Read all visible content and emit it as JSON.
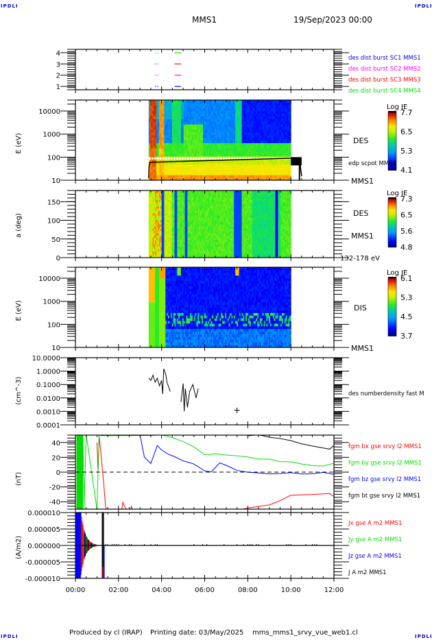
{
  "header": {
    "corner_tag": "IPDLI",
    "spacecraft": "MMS1",
    "datetime": "19/Sep/2023 00:00"
  },
  "footer": {
    "produced_by": "Produced by cl (IRAP)",
    "printing_date": "Printing date: 03/May/2025",
    "script_name": "mms_mms1_srvy_vue_web1.cl"
  },
  "chart_data": [
    {
      "id": "burst",
      "type": "scatter",
      "title": "",
      "ylabel": "",
      "ylim": [
        0.7,
        4.3
      ],
      "yticks": [
        1,
        2,
        3,
        4
      ],
      "ytick_labels": [
        "1",
        "2",
        "3",
        "4"
      ],
      "xlim": [
        0,
        12
      ],
      "series": [
        {
          "name": "des dist burst SC1 MMS1",
          "color": "#0000ff",
          "level": 1,
          "intervals": [
            [
              3.7,
              3.85
            ],
            [
              4.6,
              4.9
            ]
          ]
        },
        {
          "name": "des dist burst SC2 MMS2",
          "color": "#ff00ff",
          "level": 2,
          "intervals": [
            [
              3.7,
              3.85
            ],
            [
              4.6,
              4.9
            ]
          ]
        },
        {
          "name": "des dist burst SC3 MMS3",
          "color": "#ff0000",
          "level": 3,
          "intervals": [
            [
              3.7,
              3.85
            ],
            [
              4.6,
              4.9
            ]
          ]
        },
        {
          "name": "des dist burst SC4 MMS4",
          "color": "#00dd00",
          "level": 4,
          "intervals": [
            [
              3.7,
              3.85
            ],
            [
              4.6,
              4.9
            ]
          ]
        }
      ]
    },
    {
      "id": "des_energy",
      "type": "heatmap",
      "ylabel": "E (eV)",
      "yscale": "log",
      "ylim": [
        10,
        30000
      ],
      "ytick_labels": [
        "10",
        "100",
        "1000",
        "10000"
      ],
      "yticks": [
        10,
        100,
        1000,
        10000
      ],
      "right_label": "DES",
      "right_sublabel": "MMS1",
      "overlay_label": "edp scpot MMS1",
      "colorbar": {
        "title": "Log JE",
        "ticks": [
          "7.7",
          "6.5",
          "5.3",
          "4.1"
        ],
        "range": [
          4.1,
          7.7
        ]
      },
      "data_interval": [
        3.4,
        10.0
      ],
      "hot_bands": [
        [
          3.45,
          3.75,
          7.5
        ],
        [
          3.85,
          4.1,
          7.2
        ],
        [
          4.5,
          4.9,
          6.1
        ],
        [
          7.4,
          7.7,
          6.0
        ]
      ],
      "scpot_series": {
        "x": [
          3.4,
          3.42,
          3.45,
          10.0,
          10.05,
          10.2,
          10.3,
          10.4,
          10.5
        ],
        "y": [
          12,
          40,
          60,
          90,
          95,
          85,
          90,
          80,
          15
        ]
      }
    },
    {
      "id": "des_pitch",
      "type": "heatmap",
      "ylabel": "a (deg)",
      "ylim": [
        0,
        180
      ],
      "yticks": [
        0,
        50,
        100,
        150
      ],
      "ytick_labels": [
        "0",
        "50",
        "100",
        "150"
      ],
      "right_label": "DES",
      "right_sublabel": "MMS1",
      "energy_range_label": "132-178 eV",
      "colorbar": {
        "title": "Log JE",
        "ticks": [
          "7.3",
          "6.5",
          "5.6",
          "4.8"
        ],
        "range": [
          4.8,
          7.3
        ]
      },
      "data_interval": [
        3.4,
        10.0
      ],
      "blue_bands": [
        [
          4.0,
          4.1
        ],
        [
          4.6,
          4.7
        ],
        [
          5.1,
          5.2
        ],
        [
          7.35,
          7.7
        ],
        [
          9.3,
          9.4
        ]
      ]
    },
    {
      "id": "dis_energy",
      "type": "heatmap",
      "ylabel": "E (eV)",
      "yscale": "log",
      "ylim": [
        10,
        30000
      ],
      "yticks": [
        10,
        100,
        1000,
        10000
      ],
      "ytick_labels": [
        "10",
        "100",
        "1000",
        "10000"
      ],
      "right_label": "DIS",
      "right_sublabel": "MMS1",
      "colorbar": {
        "title": "Log JE",
        "ticks": [
          "6.1",
          "5.3",
          "4.5",
          "3.7"
        ],
        "range": [
          3.7,
          6.1
        ]
      },
      "data_interval": [
        3.4,
        10.0
      ]
    },
    {
      "id": "density",
      "type": "line",
      "ylabel": "(cm^-3)",
      "yscale": "log",
      "ylim": [
        0.0001,
        10
      ],
      "yticks": [
        0.0001,
        0.001,
        0.01,
        0.1,
        1,
        10
      ],
      "ytick_labels": [
        "0.0001",
        "0.0010",
        "0.0100",
        "0.1000",
        "1.0000",
        "10.0000"
      ],
      "legend": "des numberdensity fast M",
      "series": [
        {
          "name": "des numberdensity fast",
          "color": "#000000",
          "x": [
            3.4,
            3.5,
            3.6,
            3.7,
            3.8,
            3.9,
            4.0,
            4.05,
            4.1,
            4.2,
            4.25,
            4.4,
            4.9,
            5.0,
            5.05,
            5.1,
            5.2,
            5.3,
            5.45,
            5.6,
            5.7,
            6.0
          ],
          "y": [
            0.3,
            0.2,
            0.5,
            0.15,
            0.3,
            0.08,
            0.2,
            0.02,
            1.5,
            0.5,
            0.15,
            0.03,
            0.005,
            0.12,
            0.001,
            0.05,
            0.002,
            0.03,
            0.1,
            0.01,
            0.05,
            0.003
          ]
        },
        {
          "name": "isolated point",
          "color": "#000000",
          "marker": "+",
          "x": [
            7.5
          ],
          "y": [
            0.0012
          ]
        }
      ]
    },
    {
      "id": "bfield",
      "type": "line",
      "ylabel": "(nT)",
      "ylim": [
        -50,
        50
      ],
      "yticks": [
        -40,
        -20,
        0,
        20,
        40
      ],
      "ytick_labels": [
        "-40",
        "-20",
        "0",
        "20",
        "40"
      ],
      "zero_line": true,
      "series": [
        {
          "name": "fgm bx gse srvy l2 MMS1",
          "color": "#ff0000",
          "x": [
            1.0,
            1.05,
            1.1,
            1.2,
            1.3,
            1.4,
            1.6,
            2.1,
            2.2,
            2.5,
            2.6,
            2.7,
            3.0,
            5.0,
            6.5,
            7.0,
            7.5,
            8.0,
            8.5,
            9.0,
            9.5,
            10.0,
            11.0,
            11.8,
            12.0
          ],
          "y": [
            40,
            0,
            50,
            20,
            -10,
            -48,
            -60,
            -60,
            -40,
            -60,
            -45,
            -60,
            -60,
            -60,
            -52,
            -50,
            -52,
            -48,
            -46,
            -45,
            -38,
            -32,
            -30,
            -28,
            -33
          ]
        },
        {
          "name": "fgm by gse srvy l2 MMS1",
          "color": "#00dd00",
          "x": [
            0.2,
            0.25,
            0.3,
            0.35,
            0.4,
            0.5,
            1.0,
            1.1,
            1.2,
            3.5,
            4.0,
            4.5,
            5.0,
            5.5,
            6.0,
            6.5,
            7.0,
            7.5,
            8.0,
            8.5,
            9.0,
            9.5,
            10.0,
            10.5,
            11.0,
            11.5,
            12.0
          ],
          "y": [
            -50,
            50,
            -50,
            50,
            -50,
            50,
            -50,
            50,
            50,
            50,
            50,
            46,
            42,
            35,
            24,
            24,
            23,
            22,
            20,
            18,
            18,
            15,
            13,
            10,
            8,
            9,
            12
          ]
        },
        {
          "name": "fgm bz gse srvy l2 MMS1",
          "color": "#0000ff",
          "x": [
            2.6,
            3.0,
            3.2,
            3.5,
            3.8,
            4.0,
            4.3,
            4.6,
            5.0,
            5.5,
            6.0,
            6.3,
            6.7,
            7.0,
            7.5,
            8.0,
            8.5,
            9.0,
            9.5,
            10.0,
            10.5,
            11.0,
            11.5,
            12.0
          ],
          "y": [
            50,
            50,
            20,
            12,
            35,
            30,
            25,
            20,
            15,
            10,
            2,
            0,
            12,
            10,
            2,
            0,
            -2,
            -3,
            -2,
            0,
            -2,
            -2,
            -1,
            -3
          ]
        },
        {
          "name": "fgm bt gse srvy l2 MMS1",
          "color": "#000000",
          "x": [
            7.8,
            8.0,
            8.5,
            9.0,
            9.5,
            10.0,
            10.5,
            11.0,
            11.5,
            11.8,
            12.0
          ],
          "y": [
            60,
            50,
            50,
            48,
            45,
            42,
            38,
            35,
            33,
            32,
            36
          ]
        }
      ]
    },
    {
      "id": "current",
      "type": "line",
      "ylabel": "(A/m2)",
      "ylim": [
        -1e-05,
        1e-05
      ],
      "yticks": [
        -1e-05,
        -5e-06,
        0,
        5e-06,
        1e-05
      ],
      "ytick_labels": [
        "-0.000010",
        "-0.000005",
        "0.000000",
        "0.000005",
        "0.000010"
      ],
      "xlabel": "",
      "xlim": [
        0,
        12
      ],
      "xticks": [
        0,
        2,
        4,
        6,
        8,
        10,
        12
      ],
      "xtick_labels": [
        "00:00",
        "02:00",
        "04:00",
        "06:00",
        "08:00",
        "10:00",
        "12:00"
      ],
      "series": [
        {
          "name": "Jx gse A m2 MMS1",
          "color": "#ff0000"
        },
        {
          "name": "Jy gse A m2 MMS1",
          "color": "#00dd00"
        },
        {
          "name": "Jz gse A m2 MMS1",
          "color": "#0000ff"
        },
        {
          "name": "J A m2 MMS1",
          "color": "#000000"
        }
      ]
    }
  ]
}
